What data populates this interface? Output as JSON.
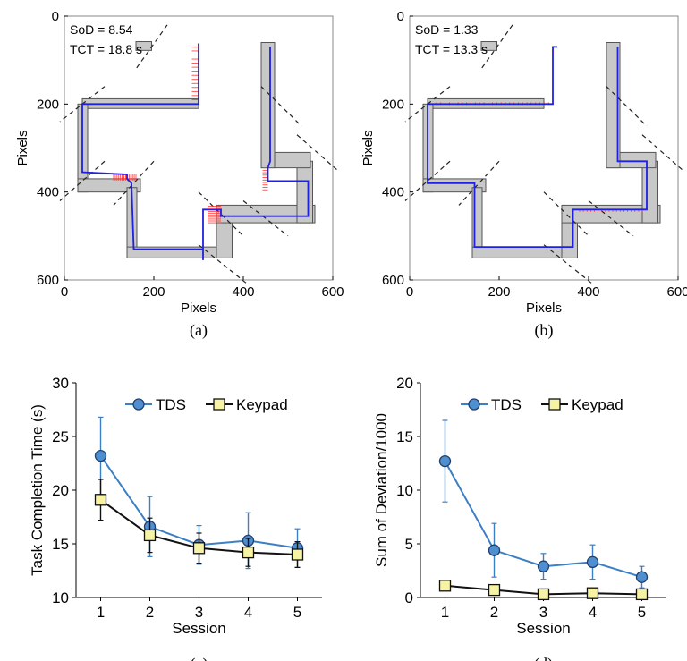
{
  "chart_data": [
    {
      "type": "line",
      "panel": "a",
      "caption": "(a)",
      "xlabel": "Pixels",
      "ylabel": "Pixels",
      "xlim": [
        0,
        600
      ],
      "ylim": [
        600,
        0
      ],
      "xticks": [
        "0",
        "200",
        "400",
        "600"
      ],
      "yticks": [
        "0",
        "200",
        "400",
        "600"
      ],
      "annotations": [
        "SoD = 8.54",
        "TCT = 18.8 s"
      ],
      "track_color": "#c8c8c8",
      "path_color": "#2020e0",
      "deviation_color": "#ff3030"
    },
    {
      "type": "line",
      "panel": "b",
      "caption": "(b)",
      "xlabel": "Pixels",
      "ylabel": "Pixels",
      "xlim": [
        0,
        600
      ],
      "ylim": [
        600,
        0
      ],
      "xticks": [
        "0",
        "200",
        "400",
        "600"
      ],
      "yticks": [
        "0",
        "200",
        "400",
        "600"
      ],
      "annotations": [
        "SoD = 1.33",
        "TCT = 13.3 s"
      ],
      "track_color": "#c8c8c8",
      "path_color": "#2020e0",
      "deviation_color": "#ff3030"
    },
    {
      "type": "line",
      "panel": "c",
      "caption": "(c)",
      "xlabel": "Session",
      "ylabel": "Task Completion Time (s)",
      "xlim": [
        0.5,
        5.5
      ],
      "ylim": [
        10,
        30
      ],
      "categories": [
        1,
        2,
        3,
        4,
        5
      ],
      "yticks": [
        "10",
        "15",
        "20",
        "25",
        "30"
      ],
      "legend": "top",
      "series": [
        {
          "name": "TDS",
          "color": "#3b7fc4",
          "marker": "circle",
          "values": [
            23.2,
            16.6,
            14.9,
            15.3,
            14.6
          ],
          "err": [
            3.6,
            2.8,
            1.8,
            2.6,
            1.8
          ]
        },
        {
          "name": "Keypad",
          "color": "#111111",
          "marker": "square",
          "values": [
            19.1,
            15.8,
            14.6,
            14.2,
            14.0
          ],
          "err": [
            1.9,
            1.6,
            1.4,
            1.3,
            1.2
          ]
        }
      ]
    },
    {
      "type": "line",
      "panel": "d",
      "caption": "(d)",
      "xlabel": "Session",
      "ylabel": "Sum of Deviation/1000",
      "xlim": [
        0.5,
        5.5
      ],
      "ylim": [
        0,
        20
      ],
      "categories": [
        1,
        2,
        3,
        4,
        5
      ],
      "yticks": [
        "0",
        "5",
        "10",
        "15",
        "20"
      ],
      "legend": "top",
      "series": [
        {
          "name": "TDS",
          "color": "#3b7fc4",
          "marker": "circle",
          "values": [
            12.7,
            4.4,
            2.9,
            3.3,
            1.9
          ],
          "err": [
            3.8,
            2.5,
            1.2,
            1.6,
            1.0
          ]
        },
        {
          "name": "Keypad",
          "color": "#111111",
          "marker": "square",
          "values": [
            1.1,
            0.7,
            0.3,
            0.4,
            0.3
          ],
          "err": [
            0.3,
            0.3,
            0.2,
            0.2,
            0.2
          ]
        }
      ]
    }
  ]
}
